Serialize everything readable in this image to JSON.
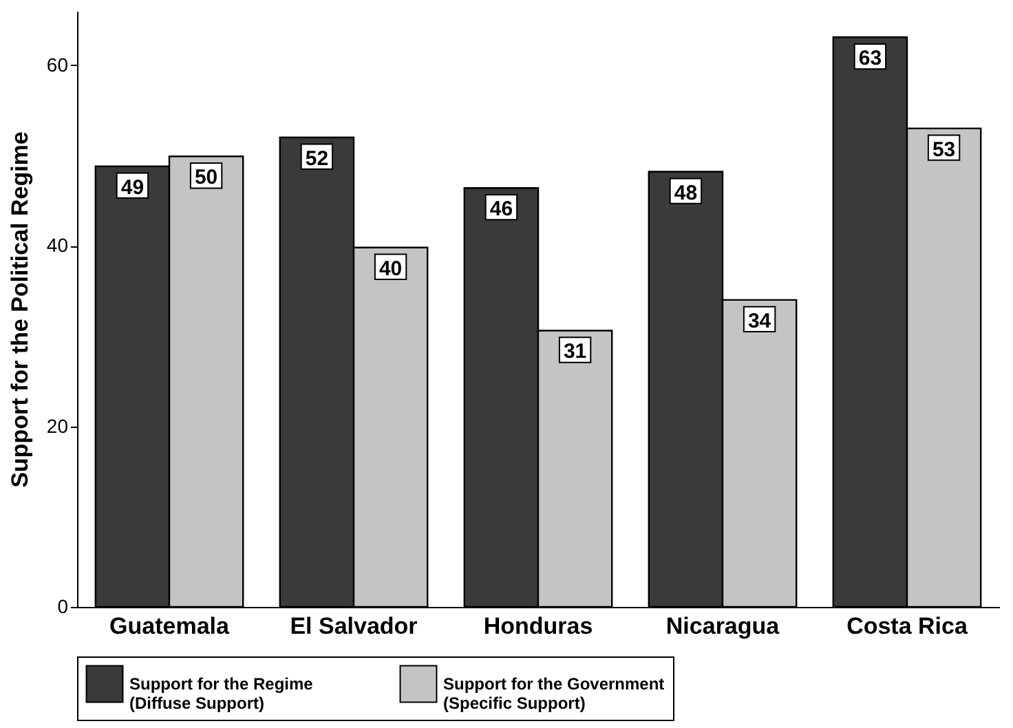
{
  "chart_data": {
    "type": "bar",
    "ylabel": "Support for the Political Regime",
    "categories": [
      "Guatemala",
      "El Salvador",
      "Honduras",
      "Nicaragua",
      "Costa Rica"
    ],
    "series": [
      {
        "name": "Support for the Regime\n(Diffuse Support)",
        "color": "#3a3a3a",
        "values": [
          48.8,
          52.0,
          46.4,
          48.2,
          63.1
        ],
        "value_labels": [
          "49",
          "52",
          "46",
          "48",
          "63"
        ]
      },
      {
        "name": "Support for the Government\n(Specific Support)",
        "color": "#c4c4c4",
        "values": [
          49.9,
          39.8,
          30.6,
          34.0,
          53.0
        ],
        "value_labels": [
          "50",
          "40",
          "31",
          "34",
          "53"
        ]
      }
    ],
    "ylim": [
      0,
      66
    ],
    "yticks": [
      0,
      20,
      40,
      60
    ],
    "grid": false,
    "legend": "bottom"
  }
}
